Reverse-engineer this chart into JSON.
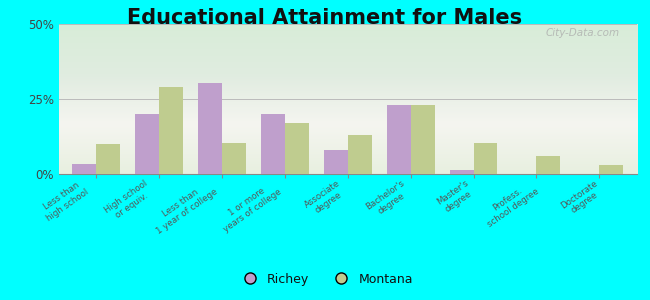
{
  "title": "Educational Attainment for Males",
  "categories": [
    "Less than\nhigh school",
    "High school\nor equiv.",
    "Less than\n1 year of college",
    "1 or more\nyears of college",
    "Associate\ndegree",
    "Bachelor's\ndegree",
    "Master's\ndegree",
    "Profess.\nschool degree",
    "Doctorate\ndegree"
  ],
  "richey_values": [
    3.5,
    20.0,
    30.5,
    20.0,
    8.0,
    23.0,
    1.5,
    0.0,
    0.0
  ],
  "montana_values": [
    10.0,
    29.0,
    10.5,
    17.0,
    13.0,
    23.0,
    10.5,
    6.0,
    3.0
  ],
  "richey_color": "#bf9fcc",
  "montana_color": "#bfcc8f",
  "ylim": [
    0,
    50
  ],
  "yticks": [
    0,
    25,
    50
  ],
  "ytick_labels": [
    "0%",
    "25%",
    "50%"
  ],
  "outer_background": "#00ffff",
  "grid_color": "#bbbbbb",
  "watermark": "City-Data.com",
  "legend_richey": "Richey",
  "legend_montana": "Montana",
  "title_fontsize": 15,
  "bar_width": 0.38
}
